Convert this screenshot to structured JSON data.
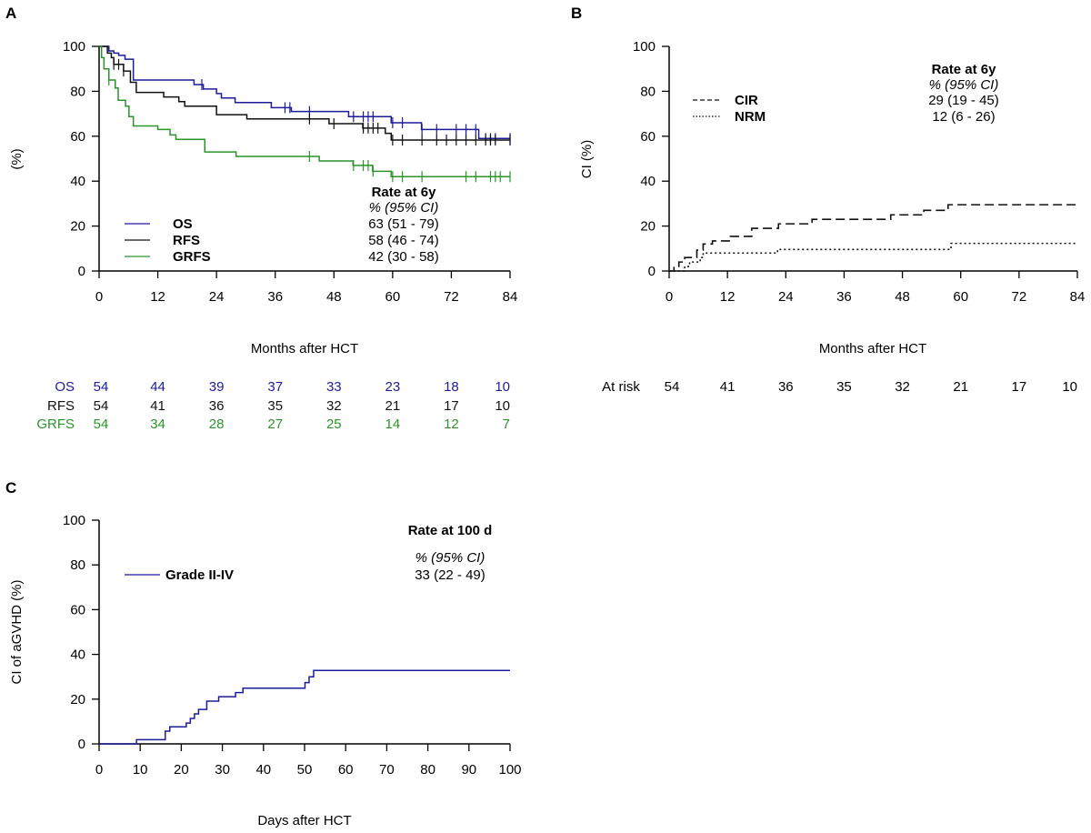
{
  "colors": {
    "OS": "#1c1c9a",
    "RFS": "#111111",
    "GRFS": "#2a942a",
    "aGVHD": "#1c1c9a"
  },
  "chart_data": [
    {
      "panel": "A",
      "type": "line",
      "step": true,
      "xlabel": "Months after HCT",
      "ylabel": "(%)",
      "xlim": [
        0,
        84
      ],
      "ylim": [
        0,
        100
      ],
      "xticks": [
        0,
        12,
        24,
        36,
        48,
        60,
        72,
        84
      ],
      "yticks": [
        0,
        20,
        40,
        60,
        80,
        100
      ],
      "legend": {
        "placement": "bottom-left",
        "rate_title": "Rate at 6y",
        "rate_subtitle": "% (95% CI)"
      },
      "series": [
        {
          "name": "OS",
          "rate": "63 (51 - 79)",
          "x": [
            0,
            2,
            3,
            4,
            5.3,
            7,
            19.4,
            21.3,
            24,
            25,
            27.8,
            35.2,
            39.3,
            51,
            59.7,
            65.9,
            77.6,
            84
          ],
          "y": [
            100,
            98,
            97,
            96,
            94.3,
            85,
            83,
            81,
            79,
            77,
            75,
            72.7,
            71,
            68.7,
            66,
            63,
            59,
            59
          ],
          "censored": [
            21,
            38,
            39,
            43,
            52,
            54,
            55,
            56,
            60,
            62,
            66,
            69,
            73,
            75,
            77,
            79,
            80,
            81,
            84
          ]
        },
        {
          "name": "RFS",
          "rate": "58 (46 - 74)",
          "x": [
            0,
            1.7,
            2.5,
            3,
            5,
            6.4,
            7.6,
            13.2,
            16.3,
            17.5,
            24,
            30.2,
            47,
            53.9,
            58.5,
            59.7,
            84
          ],
          "y": [
            100,
            97,
            95,
            92,
            89,
            84,
            79.5,
            77.5,
            75.4,
            73.4,
            69.6,
            67.7,
            65.6,
            63.6,
            61.3,
            58.3,
            58.3
          ],
          "censored": [
            3,
            4,
            5,
            43,
            48,
            54,
            55,
            56,
            57,
            60,
            62,
            66,
            69,
            71,
            73,
            75,
            77,
            79,
            80,
            81,
            84
          ]
        },
        {
          "name": "GRFS",
          "rate": "42 (30 - 58)",
          "x": [
            0,
            0.5,
            1,
            2,
            3.3,
            3.9,
            5.4,
            6.1,
            7,
            12,
            14.5,
            15.7,
            21.6,
            28,
            45,
            51.9,
            55.9,
            59.7,
            84
          ],
          "y": [
            100,
            95,
            90,
            85,
            81.5,
            76,
            73.4,
            68.7,
            64.6,
            63,
            60.6,
            58.6,
            53,
            51,
            49,
            47,
            44.4,
            42,
            42
          ],
          "censored": [
            2,
            43,
            52,
            54,
            55,
            56,
            60,
            62,
            66,
            75,
            77,
            80,
            81,
            82,
            84
          ]
        }
      ],
      "risk_table": {
        "rows": [
          {
            "name": "OS",
            "values": [
              "54",
              "44",
              "39",
              "37",
              "33",
              "23",
              "18",
              "10"
            ]
          },
          {
            "name": "RFS",
            "values": [
              "54",
              "41",
              "36",
              "35",
              "32",
              "21",
              "17",
              "10"
            ]
          },
          {
            "name": "GRFS",
            "values": [
              "54",
              "34",
              "28",
              "27",
              "25",
              "14",
              "12",
              "7"
            ]
          }
        ]
      }
    },
    {
      "panel": "B",
      "type": "line",
      "step": true,
      "xlabel": "Months after HCT",
      "ylabel": "CI (%)",
      "xlim": [
        0,
        84
      ],
      "ylim": [
        0,
        100
      ],
      "xticks": [
        0,
        12,
        24,
        36,
        48,
        60,
        72,
        84
      ],
      "yticks": [
        0,
        20,
        40,
        60,
        80,
        100
      ],
      "legend": {
        "placement": "top-left",
        "rate_title": "Rate at 6y",
        "rate_subtitle": "% (95% CI)"
      },
      "series": [
        {
          "name": "CIR",
          "rate": "29 (19 - 45)",
          "dash": "dashed",
          "x": [
            0,
            1,
            2,
            3.2,
            5.7,
            7,
            8.9,
            12.6,
            17,
            22.5,
            29.4,
            45.6,
            52.4,
            57.4,
            84
          ],
          "y": [
            0,
            2,
            4,
            6,
            9.3,
            12,
            13.4,
            15.4,
            19,
            21,
            23,
            25,
            27,
            29.5,
            29.5
          ]
        },
        {
          "name": "NRM",
          "rate": "12 (6 - 26)",
          "dash": "dotted",
          "x": [
            0,
            3.2,
            4.2,
            6.4,
            7,
            22.3,
            58,
            84
          ],
          "y": [
            0,
            2,
            4,
            6,
            8,
            9.6,
            12.3,
            12.3
          ]
        }
      ],
      "risk_table": {
        "label": "At risk",
        "values": [
          "54",
          "41",
          "36",
          "35",
          "32",
          "21",
          "17",
          "10"
        ]
      }
    },
    {
      "panel": "C",
      "type": "line",
      "step": true,
      "xlabel": "Days after HCT",
      "ylabel": "CI of aGVHD (%)",
      "xlim": [
        0,
        100
      ],
      "ylim": [
        0,
        100
      ],
      "xticks": [
        0,
        10,
        20,
        30,
        40,
        50,
        60,
        70,
        80,
        90,
        100
      ],
      "yticks": [
        0,
        20,
        40,
        60,
        80,
        100
      ],
      "legend": {
        "placement": "top-left",
        "rate_title": "Rate at 100 d",
        "rate_subtitle": "% (95% CI)"
      },
      "series": [
        {
          "name": "Grade II-IV",
          "rate": "33 (22 - 49)",
          "x": [
            0,
            9.1,
            16.1,
            17.2,
            21.2,
            22.2,
            23.2,
            24.2,
            26.2,
            29.1,
            33.2,
            35,
            50.1,
            51.1,
            52.2,
            100
          ],
          "y": [
            0,
            1.9,
            5.7,
            7.6,
            9.3,
            11.4,
            13.4,
            15.4,
            19.1,
            21.1,
            22.9,
            24.9,
            27.4,
            30,
            32.8,
            32.8
          ]
        }
      ]
    }
  ]
}
